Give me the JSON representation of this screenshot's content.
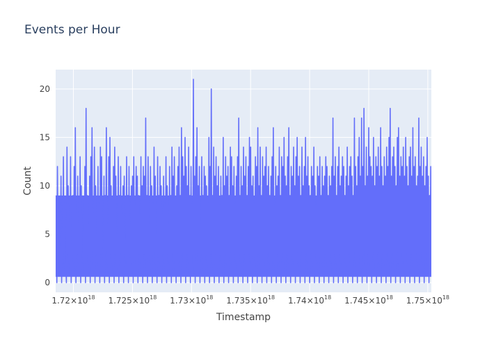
{
  "chart_data": {
    "type": "line",
    "title": "Events per Hour",
    "xlabel": "Timestamp",
    "ylabel": "Count",
    "x_range": [
      1.7185e+18,
      1.7503e+18
    ],
    "y_range": [
      -1,
      22
    ],
    "y_ticks": [
      {
        "value": 0,
        "label": "0"
      },
      {
        "value": 5,
        "label": "5"
      },
      {
        "value": 10,
        "label": "10"
      },
      {
        "value": 15,
        "label": "15"
      },
      {
        "value": 20,
        "label": "20"
      }
    ],
    "x_ticks": [
      {
        "value": 1.72e+18,
        "mantissa": "1.72",
        "exp": "18"
      },
      {
        "value": 1.725e+18,
        "mantissa": "1.725",
        "exp": "18"
      },
      {
        "value": 1.73e+18,
        "mantissa": "1.73",
        "exp": "18"
      },
      {
        "value": 1.735e+18,
        "mantissa": "1.735",
        "exp": "18"
      },
      {
        "value": 1.74e+18,
        "mantissa": "1.74",
        "exp": "18"
      },
      {
        "value": 1.745e+18,
        "mantissa": "1.745",
        "exp": "18"
      },
      {
        "value": 1.75e+18,
        "mantissa": "1.75",
        "exp": "18"
      }
    ],
    "tick_prefix": "×10",
    "series": [
      {
        "x_start": 1.7185e+18,
        "x_step": 3600000000000000.0,
        "values": [
          9,
          12,
          7,
          3,
          11,
          5,
          13,
          8,
          2,
          14,
          10,
          6,
          13,
          4,
          9,
          12,
          16,
          7,
          11,
          5,
          13,
          10,
          3,
          8,
          12,
          18,
          9,
          6,
          11,
          13,
          16,
          7,
          14,
          10,
          5,
          12,
          8,
          14,
          13,
          2,
          11,
          9,
          16,
          6,
          13,
          15,
          10,
          8,
          12,
          14,
          11,
          5,
          13,
          9,
          12,
          7,
          10,
          11,
          4,
          13,
          9,
          12,
          6,
          10,
          11,
          13,
          8,
          12,
          11,
          9,
          7,
          13,
          10,
          12,
          11,
          17,
          9,
          13,
          6,
          12,
          10,
          8,
          14,
          11,
          5,
          13,
          9,
          12,
          10,
          7,
          11,
          8,
          13,
          10,
          6,
          12,
          9,
          14,
          11,
          13,
          8,
          10,
          12,
          14,
          9,
          16,
          13,
          11,
          15,
          12,
          10,
          14,
          9,
          12,
          8,
          21,
          11,
          13,
          16,
          10,
          12,
          6,
          13,
          9,
          12,
          11,
          10,
          8,
          15,
          12,
          20,
          9,
          14,
          11,
          13,
          10,
          12,
          8,
          11,
          9,
          15,
          10,
          13,
          11,
          12,
          9,
          14,
          13,
          10,
          12,
          8,
          11,
          13,
          17,
          9,
          12,
          10,
          14,
          11,
          13,
          9,
          12,
          15,
          14,
          10,
          11,
          8,
          13,
          12,
          16,
          10,
          14,
          9,
          13,
          11,
          12,
          14,
          10,
          12,
          9,
          11,
          13,
          16,
          8,
          12,
          10,
          11,
          14,
          9,
          13,
          12,
          15,
          11,
          10,
          13,
          16,
          9,
          12,
          11,
          14,
          10,
          13,
          15,
          11,
          12,
          9,
          14,
          10,
          12,
          15,
          11,
          13,
          10,
          9,
          12,
          11,
          14,
          10,
          8,
          12,
          11,
          13,
          9,
          12,
          10,
          11,
          13,
          12,
          9,
          11,
          10,
          12,
          17,
          11,
          13,
          9,
          12,
          14,
          10,
          11,
          13,
          12,
          9,
          11,
          14,
          10,
          12,
          13,
          11,
          9,
          17,
          12,
          10,
          13,
          15,
          11,
          17,
          12,
          18,
          10,
          14,
          11,
          16,
          13,
          12,
          11,
          15,
          10,
          13,
          12,
          14,
          11,
          16,
          12,
          10,
          13,
          11,
          14,
          12,
          15,
          18,
          11,
          13,
          14,
          12,
          10,
          15,
          16,
          11,
          13,
          12,
          14,
          11,
          15,
          12,
          10,
          13,
          14,
          11,
          16,
          12,
          13,
          10,
          11,
          17,
          12,
          14,
          11,
          13,
          10,
          12,
          15,
          11,
          9,
          12
        ]
      }
    ],
    "line_color": "#636efa",
    "plot_bg": "#e5ecf6",
    "grid_color": "#ffffff",
    "grid": true
  }
}
